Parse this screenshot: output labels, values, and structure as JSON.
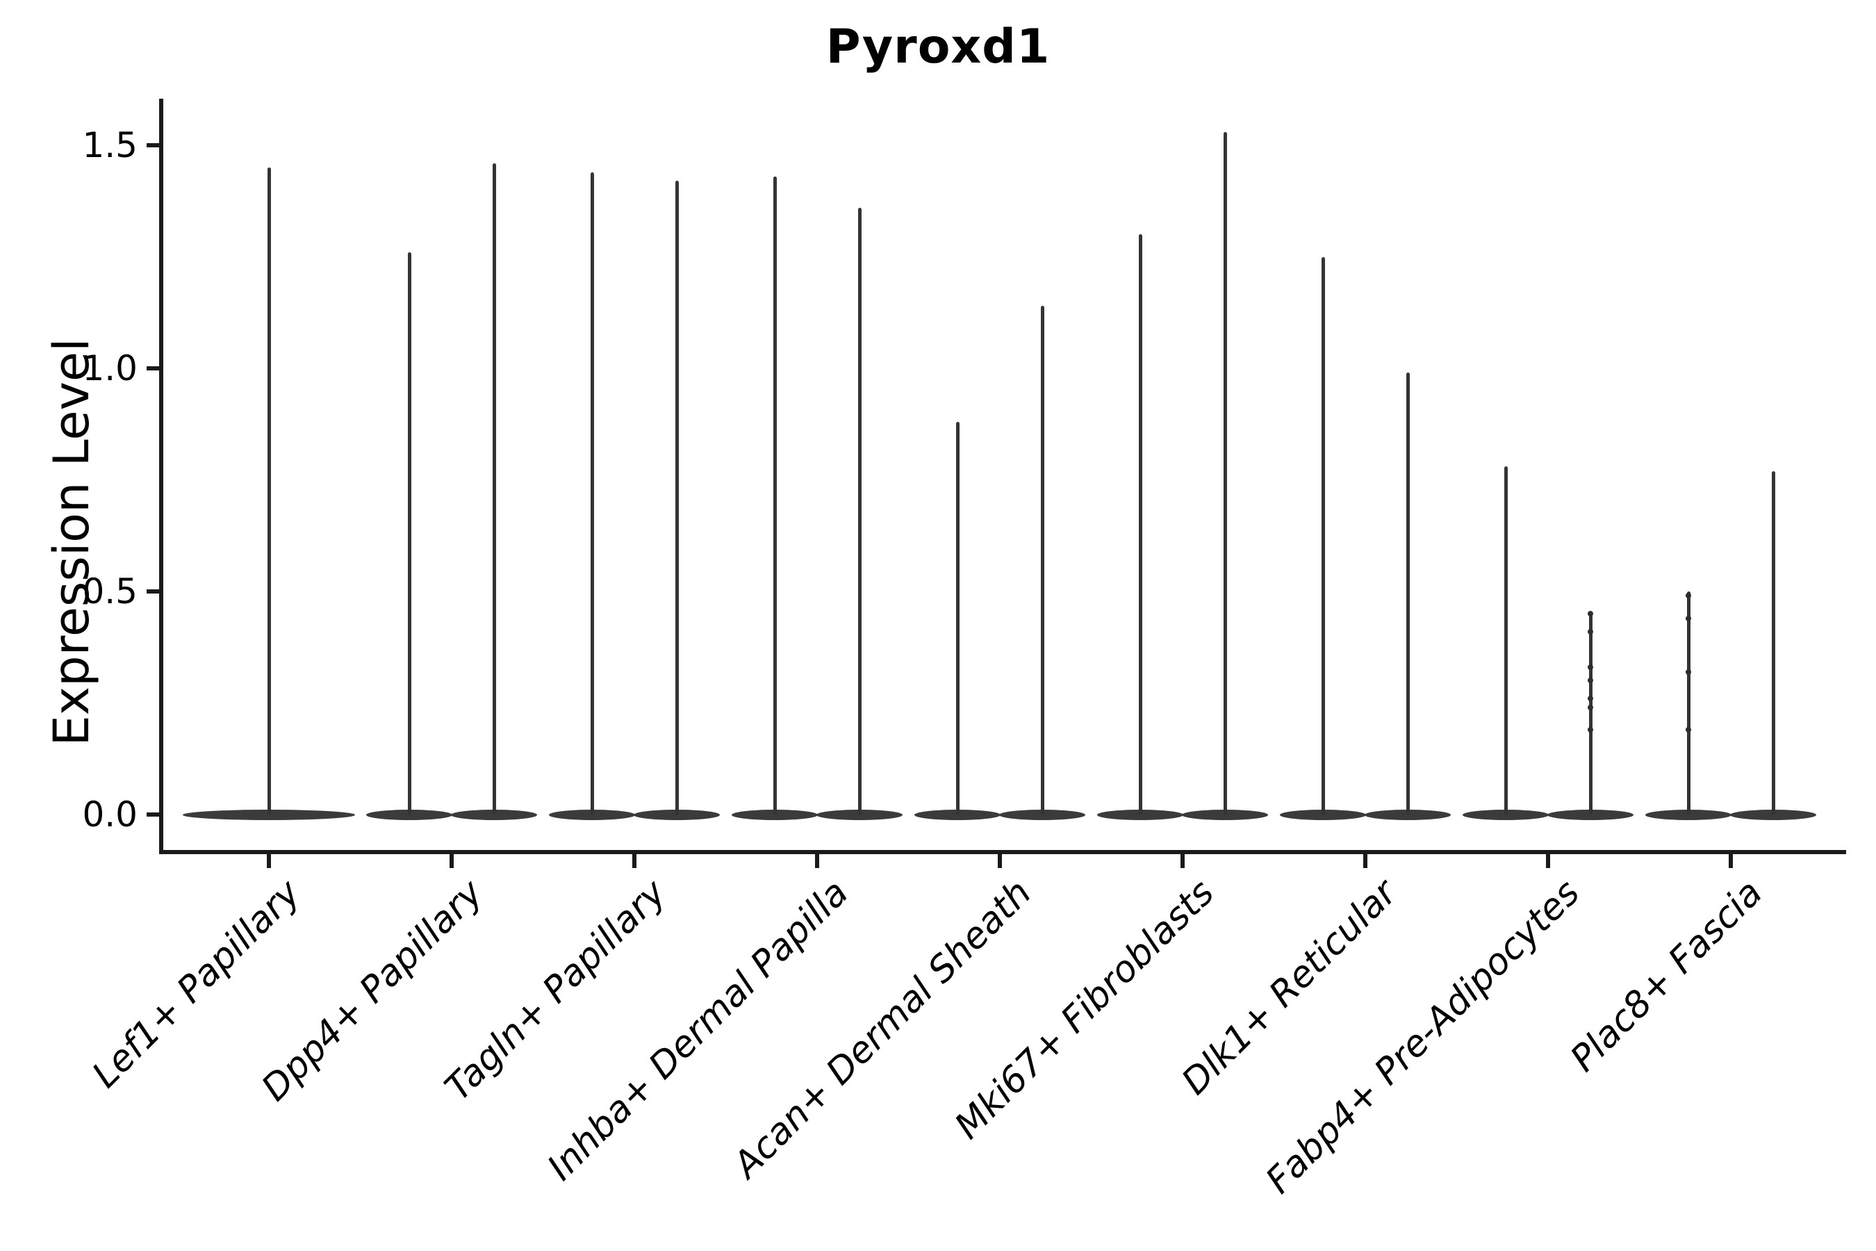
{
  "figure": {
    "title": "Pyroxd1",
    "background_color": "#ffffff",
    "violin_color": "#3b3b3b",
    "axis_color": "#1a1a1a",
    "text_color": "#000000"
  },
  "chart_data": {
    "type": "violin",
    "title": "Pyroxd1",
    "xlabel": "",
    "ylabel": "Expression Level",
    "ylim": [
      -0.08,
      1.6
    ],
    "yticks": [
      0.0,
      0.5,
      1.0,
      1.5
    ],
    "ytick_labels": [
      "0.0",
      "0.5",
      "1.0",
      "1.5"
    ],
    "grid": false,
    "legend": "none",
    "categories": [
      "Lef1+ Papillary",
      "Dpp4+ Papillary",
      "Tagln+ Papillary",
      "Inhba+ Dermal Papilla",
      "Acan+ Dermal Sheath",
      "Mki67+ Fibroblasts",
      "Dlk1+ Reticular",
      "Fabp4+ Pre-Adipocytes",
      "Plac8+ Fascia"
    ],
    "description": "Violin plot of Pyroxd1 expression per fibroblast cluster; violins are collapsed at 0 (wide flat base) with thin density spikes rising to the maximum expression. Most categories contain two side-by-side (dodged) violins; the first category has a single centered violin.",
    "violin_groups": [
      {
        "category": "Lef1+ Papillary",
        "violins": [
          {
            "position": "single",
            "max_expression": 1.45,
            "visible_points": []
          }
        ]
      },
      {
        "category": "Dpp4+ Papillary",
        "violins": [
          {
            "position": "left",
            "max_expression": 1.26,
            "visible_points": []
          },
          {
            "position": "right",
            "max_expression": 1.46,
            "visible_points": []
          }
        ]
      },
      {
        "category": "Tagln+ Papillary",
        "violins": [
          {
            "position": "left",
            "max_expression": 1.44,
            "visible_points": []
          },
          {
            "position": "right",
            "max_expression": 1.42,
            "visible_points": []
          }
        ]
      },
      {
        "category": "Inhba+ Dermal Papilla",
        "violins": [
          {
            "position": "left",
            "max_expression": 1.43,
            "visible_points": []
          },
          {
            "position": "right",
            "max_expression": 1.36,
            "visible_points": []
          }
        ]
      },
      {
        "category": "Acan+ Dermal Sheath",
        "violins": [
          {
            "position": "left",
            "max_expression": 0.88,
            "visible_points": []
          },
          {
            "position": "right",
            "max_expression": 1.14,
            "visible_points": []
          }
        ]
      },
      {
        "category": "Mki67+ Fibroblasts",
        "violins": [
          {
            "position": "left",
            "max_expression": 1.3,
            "visible_points": []
          },
          {
            "position": "right",
            "max_expression": 1.53,
            "visible_points": []
          }
        ]
      },
      {
        "category": "Dlk1+ Reticular",
        "violins": [
          {
            "position": "left",
            "max_expression": 1.25,
            "visible_points": []
          },
          {
            "position": "right",
            "max_expression": 0.99,
            "visible_points": []
          }
        ]
      },
      {
        "category": "Fabp4+ Pre-Adipocytes",
        "violins": [
          {
            "position": "left",
            "max_expression": 0.78,
            "visible_points": []
          },
          {
            "position": "right",
            "max_expression": 0.45,
            "visible_points": [
              0.45,
              0.41,
              0.33,
              0.3,
              0.26,
              0.24,
              0.19
            ]
          }
        ]
      },
      {
        "category": "Plac8+ Fascia",
        "violins": [
          {
            "position": "left",
            "max_expression": 0.5,
            "visible_points": [
              0.49,
              0.44,
              0.32,
              0.19
            ]
          },
          {
            "position": "right",
            "max_expression": 0.77,
            "visible_points": []
          }
        ]
      }
    ]
  }
}
